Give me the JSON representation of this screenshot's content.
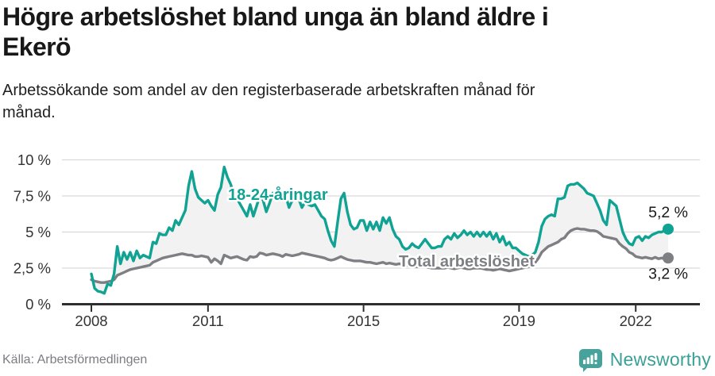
{
  "title": "Högre arbetslöshet bland unga än bland äldre i Ekerö",
  "title_lines": [
    "Högre arbetslöshet bland unga än bland äldre i",
    "Ekerö"
  ],
  "subtitle": "Arbetssökande som andel av den registerbaserade arbetskraften månad för månad.",
  "subtitle_lines": [
    "Arbetssökande som andel av den registerbaserade arbetskraften månad för",
    "månad."
  ],
  "footer": {
    "source": "Källa: Arbetsförmedlingen"
  },
  "brand": {
    "name": "Newsworthy",
    "icon": "bar-chart-speech-bubble-icon",
    "color": "#3aa096",
    "bubble_color": "#46a29b"
  },
  "colors": {
    "youth_line": "#10a293",
    "total_line": "#7e7f83",
    "band_fill": "#f2f2f2",
    "grid": "#d9d9d9",
    "axis": "#2e2e2e",
    "tick_text": "#333333",
    "end_label_text": "#1a1a1a",
    "background": "#ffffff"
  },
  "chart_data": {
    "type": "line",
    "frequency": "monthly",
    "x_start": "2008-01",
    "x_end": "2022-11",
    "ylim": [
      0,
      10
    ],
    "grid": true,
    "yticks_values": [
      0,
      2.5,
      5,
      7.5,
      10
    ],
    "yticks_labels": [
      "0 %",
      "2,5 %",
      "5 %",
      "7,5 %",
      "10 %"
    ],
    "xticks_years": [
      2008,
      2011,
      2015,
      2019,
      2022
    ],
    "xticks_labels": [
      "2008",
      "2011",
      "2015",
      "2019",
      "2022"
    ],
    "fill_between_series": true,
    "series": [
      {
        "name": "18-24-åringar",
        "color": "#10a293",
        "end_label": "5,2 %",
        "end_value": 5.2,
        "label_pos": {
          "x": 287,
          "y": 72
        },
        "values": [
          2.1,
          1.1,
          0.9,
          0.85,
          0.75,
          1.4,
          1.3,
          2.1,
          4.0,
          2.8,
          3.6,
          3.1,
          3.6,
          3.0,
          3.7,
          3.2,
          3.4,
          3.3,
          3.2,
          4.3,
          4.2,
          4.9,
          4.8,
          4.8,
          5.3,
          5.1,
          5.8,
          5.5,
          6.0,
          6.5,
          8.2,
          9.2,
          8.0,
          7.4,
          7.2,
          7.0,
          7.2,
          6.8,
          6.5,
          7.6,
          8.1,
          9.5,
          8.8,
          8.3,
          7.6,
          7.3,
          6.9,
          6.5,
          6.1,
          6.9,
          6.1,
          6.8,
          7.5,
          7.2,
          6.4,
          7.0,
          7.7,
          7.4,
          7.3,
          7.5,
          7.5,
          6.7,
          7.2,
          7.8,
          7.3,
          6.7,
          7.1,
          6.9,
          6.8,
          6.9,
          6.5,
          6.1,
          5.9,
          5.1,
          4.4,
          4.0,
          5.7,
          7.3,
          7.7,
          6.4,
          5.5,
          5.2,
          5.3,
          5.8,
          5.8,
          5.1,
          5.7,
          5.2,
          5.7,
          5.1,
          6.0,
          5.6,
          6.0,
          5.2,
          4.7,
          4.5,
          4.0,
          3.8,
          3.9,
          4.2,
          4.0,
          3.9,
          4.2,
          4.5,
          4.2,
          3.9,
          3.9,
          4.0,
          4.0,
          4.5,
          4.7,
          4.5,
          4.9,
          4.6,
          4.8,
          5.1,
          4.8,
          5.0,
          4.7,
          5.0,
          4.7,
          5.0,
          4.7,
          5.0,
          4.5,
          4.9,
          4.3,
          4.7,
          4.1,
          4.3,
          3.9,
          3.9,
          3.7,
          3.5,
          3.4,
          3.3,
          3.4,
          3.6,
          4.3,
          5.4,
          5.9,
          6.1,
          6.2,
          6.1,
          7.3,
          7.3,
          7.4,
          8.2,
          8.3,
          8.3,
          8.4,
          8.2,
          8.0,
          7.7,
          7.6,
          7.5,
          7.0,
          6.5,
          5.8,
          5.5,
          7.2,
          7.0,
          6.8,
          5.9,
          5.0,
          4.5,
          4.2,
          4.1,
          4.6,
          4.7,
          4.4,
          4.7,
          4.6,
          4.8,
          4.9,
          5.0,
          5.0,
          5.1,
          5.2
        ]
      },
      {
        "name": "Total arbetslöshet",
        "color": "#7e7f83",
        "end_label": "3,2 %",
        "end_value": 3.2,
        "label_pos": {
          "x": 502,
          "y": 156
        },
        "values": [
          1.7,
          1.6,
          1.55,
          1.5,
          1.5,
          1.55,
          1.6,
          1.7,
          2.0,
          2.1,
          2.2,
          2.3,
          2.4,
          2.45,
          2.5,
          2.55,
          2.6,
          2.65,
          2.7,
          2.9,
          3.0,
          3.1,
          3.2,
          3.25,
          3.3,
          3.35,
          3.4,
          3.45,
          3.5,
          3.45,
          3.4,
          3.4,
          3.3,
          3.3,
          3.35,
          3.3,
          3.25,
          2.9,
          3.15,
          3.0,
          2.8,
          3.4,
          3.3,
          3.2,
          3.25,
          3.3,
          3.2,
          3.1,
          3.05,
          3.3,
          3.25,
          3.3,
          3.55,
          3.5,
          3.4,
          3.45,
          3.5,
          3.45,
          3.4,
          3.3,
          3.45,
          3.4,
          3.35,
          3.4,
          3.45,
          3.55,
          3.5,
          3.45,
          3.4,
          3.35,
          3.3,
          3.25,
          3.2,
          3.1,
          3.05,
          3.1,
          3.2,
          3.3,
          3.2,
          3.1,
          3.05,
          3.0,
          3.0,
          3.0,
          2.95,
          2.9,
          2.9,
          2.85,
          2.8,
          2.85,
          2.9,
          2.8,
          2.85,
          2.8,
          2.75,
          2.8,
          2.75,
          2.7,
          2.7,
          2.65,
          2.6,
          2.6,
          2.65,
          2.6,
          2.55,
          2.5,
          2.5,
          2.5,
          2.5,
          2.5,
          2.55,
          2.5,
          2.45,
          2.5,
          2.55,
          2.5,
          2.45,
          2.45,
          2.5,
          2.5,
          2.5,
          2.45,
          2.4,
          2.4,
          2.35,
          2.4,
          2.45,
          2.4,
          2.35,
          2.3,
          2.35,
          2.4,
          2.45,
          2.5,
          2.55,
          2.6,
          2.7,
          2.9,
          3.2,
          3.6,
          3.8,
          4.0,
          4.1,
          4.2,
          4.3,
          4.5,
          4.6,
          4.9,
          5.1,
          5.2,
          5.25,
          5.2,
          5.2,
          5.15,
          5.1,
          5.1,
          5.05,
          4.9,
          4.7,
          4.65,
          4.6,
          4.55,
          4.5,
          4.2,
          4.0,
          3.85,
          3.6,
          3.5,
          3.3,
          3.25,
          3.2,
          3.25,
          3.2,
          3.15,
          3.25,
          3.15,
          3.2,
          3.15,
          3.2
        ]
      }
    ]
  }
}
